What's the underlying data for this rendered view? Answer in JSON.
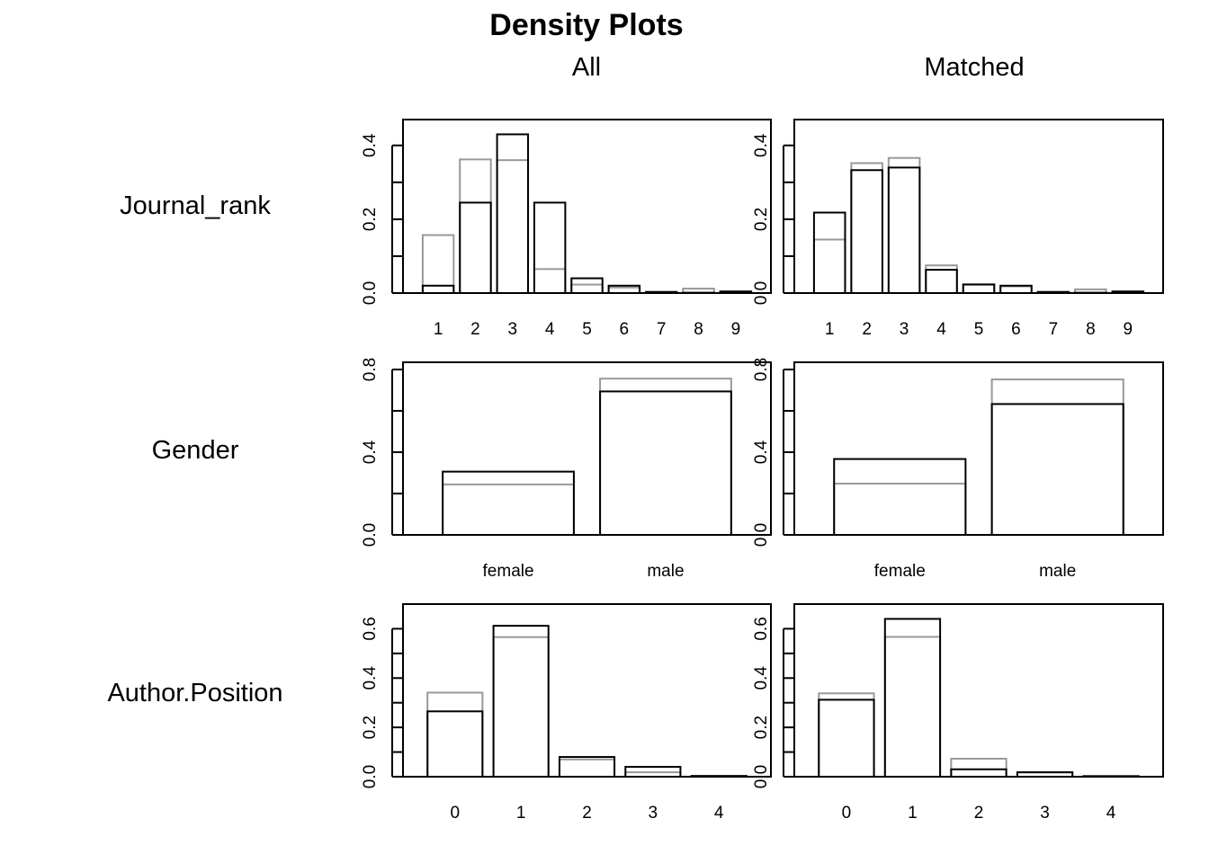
{
  "title": "Density Plots",
  "column_titles": [
    "All",
    "Matched"
  ],
  "colors": {
    "treated": "#000000",
    "control": "#999999",
    "frame": "#000000"
  },
  "chart_data": [
    {
      "type": "bar",
      "row_label": "Journal_rank",
      "panel": "All",
      "categories": [
        "1",
        "2",
        "3",
        "4",
        "5",
        "6",
        "7",
        "8",
        "9"
      ],
      "yticks": [
        "0.0",
        "0.2",
        "0.4"
      ],
      "ytick_values": [
        0,
        0.2,
        0.4
      ],
      "ylim": [
        0,
        0.47
      ],
      "series": [
        {
          "values": [
            0.02,
            0.245,
            0.43,
            0.245,
            0.04,
            0.02,
            0.003,
            0.001,
            0.004
          ]
        },
        {
          "values": [
            0.157,
            0.362,
            0.36,
            0.065,
            0.023,
            0.015,
            0.003,
            0.012,
            0.005
          ]
        }
      ]
    },
    {
      "type": "bar",
      "row_label": "Journal_rank",
      "panel": "Matched",
      "categories": [
        "1",
        "2",
        "3",
        "4",
        "5",
        "6",
        "7",
        "8",
        "9"
      ],
      "yticks": [
        "0.0",
        "0.2",
        "0.4"
      ],
      "ytick_values": [
        0,
        0.2,
        0.4
      ],
      "ylim": [
        0,
        0.47
      ],
      "series": [
        {
          "values": [
            0.218,
            0.333,
            0.34,
            0.063,
            0.023,
            0.02,
            0.003,
            0.001,
            0.004
          ]
        },
        {
          "values": [
            0.145,
            0.352,
            0.366,
            0.075,
            0.024,
            0.018,
            0.003,
            0.01,
            0.005
          ]
        }
      ]
    },
    {
      "type": "bar",
      "row_label": "Gender",
      "panel": "All",
      "categories": [
        "female",
        "male"
      ],
      "yticks": [
        "0.0",
        "0.4",
        "0.8"
      ],
      "ytick_values": [
        0,
        0.4,
        0.8
      ],
      "ylim": [
        0,
        0.835
      ],
      "series": [
        {
          "values": [
            0.306,
            0.694
          ]
        },
        {
          "values": [
            0.244,
            0.756
          ]
        }
      ]
    },
    {
      "type": "bar",
      "row_label": "Gender",
      "panel": "Matched",
      "categories": [
        "female",
        "male"
      ],
      "yticks": [
        "0.0",
        "0.4",
        "0.8"
      ],
      "ytick_values": [
        0,
        0.4,
        0.8
      ],
      "ylim": [
        0,
        0.835
      ],
      "series": [
        {
          "values": [
            0.367,
            0.633
          ]
        },
        {
          "values": [
            0.248,
            0.752
          ]
        }
      ]
    },
    {
      "type": "bar",
      "row_label": "Author.Position",
      "panel": "All",
      "categories": [
        "0",
        "1",
        "2",
        "3",
        "4"
      ],
      "yticks": [
        "0.0",
        "0.2",
        "0.4",
        "0.6"
      ],
      "ytick_values": [
        0,
        0.2,
        0.4,
        0.6
      ],
      "ylim": [
        0,
        0.7
      ],
      "series": [
        {
          "values": [
            0.265,
            0.612,
            0.08,
            0.04,
            0.003
          ]
        },
        {
          "values": [
            0.341,
            0.566,
            0.07,
            0.018,
            0.003
          ]
        }
      ]
    },
    {
      "type": "bar",
      "row_label": "Author.Position",
      "panel": "Matched",
      "categories": [
        "0",
        "1",
        "2",
        "3",
        "4"
      ],
      "yticks": [
        "0.0",
        "0.2",
        "0.4",
        "0.6"
      ],
      "ytick_values": [
        0,
        0.2,
        0.4,
        0.6
      ],
      "ylim": [
        0,
        0.7
      ],
      "series": [
        {
          "values": [
            0.312,
            0.64,
            0.03,
            0.018,
            0.002
          ]
        },
        {
          "values": [
            0.338,
            0.567,
            0.073,
            0.017,
            0.003
          ]
        }
      ]
    }
  ]
}
